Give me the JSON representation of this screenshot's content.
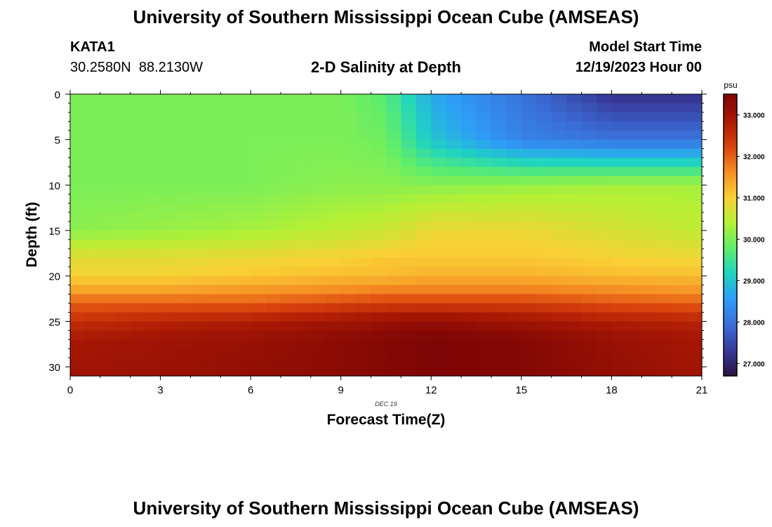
{
  "header": {
    "title": "University of Southern Mississippi Ocean Cube (AMSEAS)",
    "station_id": "KATA1",
    "station_coords": "30.2580N  88.2130W",
    "model_start_label": "Model Start Time",
    "model_start_value": "12/19/2023 Hour 00"
  },
  "footer": {
    "title": "University of Southern Mississippi Ocean Cube (AMSEAS)"
  },
  "chart_data": {
    "type": "heatmap",
    "title": "2-D Salinity at Depth",
    "xlabel": "Forecast Time(Z)",
    "ylabel": "Depth (ft)",
    "date_label": "DEC 19",
    "xlim": [
      0,
      21
    ],
    "ylim": [
      0,
      31
    ],
    "x_ticks": [
      0,
      3,
      6,
      9,
      12,
      15,
      18,
      21
    ],
    "y_ticks": [
      0,
      5,
      10,
      15,
      20,
      25,
      30
    ],
    "colorbar": {
      "unit": "psu",
      "range": [
        26.7,
        33.5
      ],
      "ticks": [
        "27.000",
        "28.000",
        "29.000",
        "30.000",
        "31.000",
        "32.000",
        "33.000"
      ],
      "colors": [
        "#2a1240",
        "#383a9a",
        "#3a6fd8",
        "#2e9cf8",
        "#1fd4c0",
        "#5fee6a",
        "#b6f034",
        "#fad035",
        "#f58a22",
        "#d8400c",
        "#a81804",
        "#7d0505"
      ]
    },
    "x_profile": [
      0,
      3,
      6,
      9,
      10.5,
      12,
      15,
      18,
      21
    ],
    "depth_profile": [
      0,
      5,
      10,
      15,
      18,
      20,
      21.5,
      23,
      25,
      27,
      31
    ],
    "values": [
      [
        30.0,
        30.0,
        30.0,
        30.0,
        29.7,
        28.7,
        28.0,
        27.2,
        27.2
      ],
      [
        30.0,
        30.0,
        30.0,
        30.0,
        29.9,
        29.0,
        28.2,
        28.0,
        28.0
      ],
      [
        30.0,
        30.0,
        30.0,
        30.1,
        30.1,
        30.1,
        30.2,
        30.3,
        30.3
      ],
      [
        30.1,
        30.2,
        30.3,
        30.5,
        30.6,
        30.9,
        30.9,
        30.7,
        30.5
      ],
      [
        30.8,
        30.8,
        30.9,
        31.0,
        31.1,
        31.1,
        31.1,
        31.0,
        30.9
      ],
      [
        31.0,
        31.0,
        31.1,
        31.2,
        31.2,
        31.3,
        31.3,
        31.2,
        31.2
      ],
      [
        31.4,
        31.4,
        31.5,
        31.6,
        31.7,
        31.7,
        31.7,
        31.6,
        31.5
      ],
      [
        32.0,
        32.0,
        32.0,
        32.2,
        32.3,
        32.3,
        32.3,
        32.1,
        32.0
      ],
      [
        32.5,
        32.7,
        32.8,
        33.0,
        33.1,
        33.2,
        33.0,
        32.8,
        32.7
      ],
      [
        32.9,
        33.0,
        33.1,
        33.3,
        33.4,
        33.5,
        33.4,
        33.1,
        32.9
      ],
      [
        33.0,
        33.1,
        33.2,
        33.3,
        33.4,
        33.5,
        33.4,
        33.2,
        33.0
      ]
    ]
  }
}
